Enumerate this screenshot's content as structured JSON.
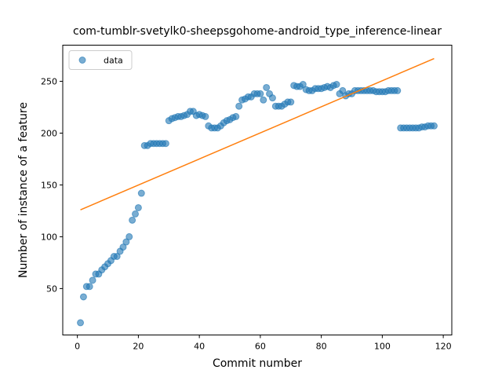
{
  "chart_data": {
    "type": "scatter",
    "title": "com-tumblr-svetylk0-sheepsgohome-android_type_inference-linear",
    "x_label": "Commit number",
    "y_label": "Number of instance of a feature",
    "xlim": [
      -4.8,
      122.8
    ],
    "ylim": [
      5.2,
      284.9
    ],
    "xticks": [
      0,
      20,
      40,
      60,
      80,
      100,
      120
    ],
    "yticks": [
      50,
      100,
      150,
      200,
      250
    ],
    "legend": "upper left",
    "series": [
      {
        "name": "data",
        "color": "#1f77b4",
        "x": [
          1,
          2,
          3,
          4,
          5,
          6,
          7,
          8,
          9,
          10,
          11,
          12,
          13,
          14,
          15,
          16,
          17,
          18,
          19,
          20,
          21,
          22,
          23,
          24,
          25,
          26,
          27,
          28,
          29,
          30,
          31,
          32,
          33,
          34,
          35,
          36,
          37,
          38,
          39,
          40,
          41,
          42,
          43,
          44,
          45,
          46,
          47,
          48,
          49,
          50,
          51,
          52,
          53,
          54,
          55,
          56,
          57,
          58,
          59,
          60,
          61,
          62,
          63,
          64,
          65,
          66,
          67,
          68,
          69,
          70,
          71,
          72,
          73,
          74,
          75,
          76,
          77,
          78,
          79,
          80,
          81,
          82,
          83,
          84,
          85,
          86,
          87,
          88,
          89,
          90,
          91,
          92,
          93,
          94,
          95,
          96,
          97,
          98,
          99,
          100,
          101,
          102,
          103,
          104,
          105,
          106,
          107,
          108,
          109,
          110,
          111,
          112,
          113,
          114,
          115,
          116,
          117
        ],
        "values": [
          17,
          42,
          52,
          52,
          58,
          64,
          64,
          68,
          71,
          74,
          77,
          81,
          81,
          86,
          90,
          95,
          100,
          116,
          122,
          128,
          142,
          188,
          188,
          190,
          190,
          190,
          190,
          190,
          190,
          212,
          214,
          215,
          216,
          216,
          217,
          218,
          221,
          221,
          217,
          218,
          217,
          216,
          207,
          205,
          205,
          205,
          207,
          210,
          212,
          213,
          215,
          216,
          226,
          232,
          233,
          235,
          235,
          238,
          238,
          238,
          232,
          244,
          238,
          234,
          226,
          226,
          226,
          228,
          230,
          230,
          246,
          245,
          245,
          247,
          242,
          241,
          241,
          243,
          243,
          243,
          244,
          245,
          244,
          246,
          247,
          238,
          241,
          236,
          238,
          238,
          241,
          241,
          241,
          241,
          241,
          241,
          241,
          240,
          240,
          240,
          240,
          241,
          241,
          241,
          241,
          205,
          205,
          205,
          205,
          205,
          205,
          205,
          206,
          206,
          207,
          207,
          207
        ]
      }
    ],
    "fit": {
      "color": "#ff7f0e",
      "x": [
        1,
        117
      ],
      "values": [
        126,
        272
      ]
    }
  }
}
